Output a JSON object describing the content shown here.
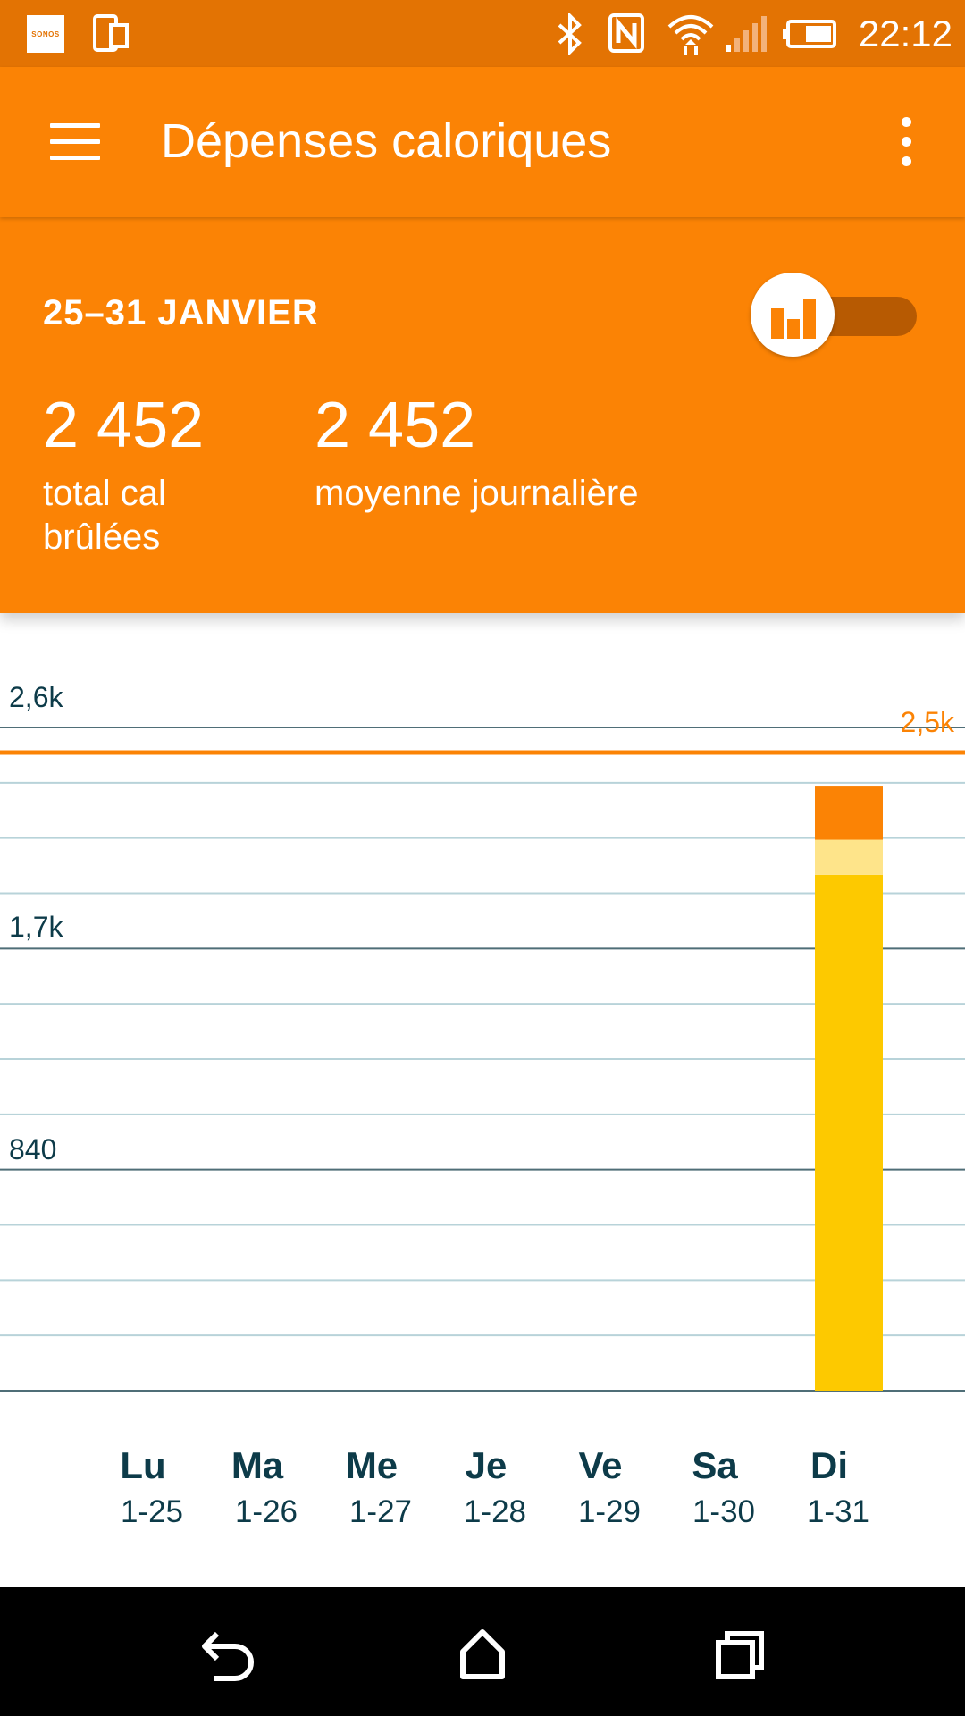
{
  "status_bar": {
    "time": "22:12",
    "icons": [
      "sonos-icon",
      "phone-screen-icon",
      "bluetooth-icon",
      "nfc-icon",
      "wifi-icon",
      "signal-icon",
      "battery-icon"
    ],
    "sonos_label": "SONOS"
  },
  "app_bar": {
    "title": "Dépenses caloriques",
    "menu_icon": "hamburger-menu-icon",
    "overflow_icon": "more-vert-icon"
  },
  "summary": {
    "date_range": "25–31 JANVIER",
    "total_value": "2 452",
    "total_label_line1": "total cal",
    "total_label_line2": "brûlées",
    "average_value": "2 452",
    "average_label": "moyenne journalière",
    "toggle_icon": "bar-chart-icon"
  },
  "colors": {
    "accent": "#fb8305",
    "status_bar": "#e37303",
    "bar_main": "#fdc900",
    "bar_light": "#fee48a",
    "bar_top": "#fb8305",
    "text_dark": "#0d3b49"
  },
  "chart_data": {
    "type": "bar",
    "categories": [
      "Lu",
      "Ma",
      "Me",
      "Je",
      "Ve",
      "Sa",
      "Di"
    ],
    "dates": [
      "1-25",
      "1-26",
      "1-27",
      "1-28",
      "1-29",
      "1-30",
      "1-31"
    ],
    "series": [
      {
        "values": [
          0,
          0,
          0,
          0,
          0,
          0,
          2022
        ]
      },
      {
        "values": [
          0,
          0,
          0,
          0,
          0,
          0,
          138
        ]
      },
      {
        "values": [
          0,
          0,
          0,
          0,
          0,
          0,
          212
        ]
      }
    ],
    "y_ticks": [
      "840",
      "1,7k",
      "2,6k"
    ],
    "goal": {
      "label": "2,5k",
      "value": 2520
    },
    "ylim": [
      0,
      2700
    ],
    "grid": true
  },
  "nav_bar": {
    "icons": [
      "back-icon",
      "home-icon",
      "recents-icon"
    ]
  }
}
